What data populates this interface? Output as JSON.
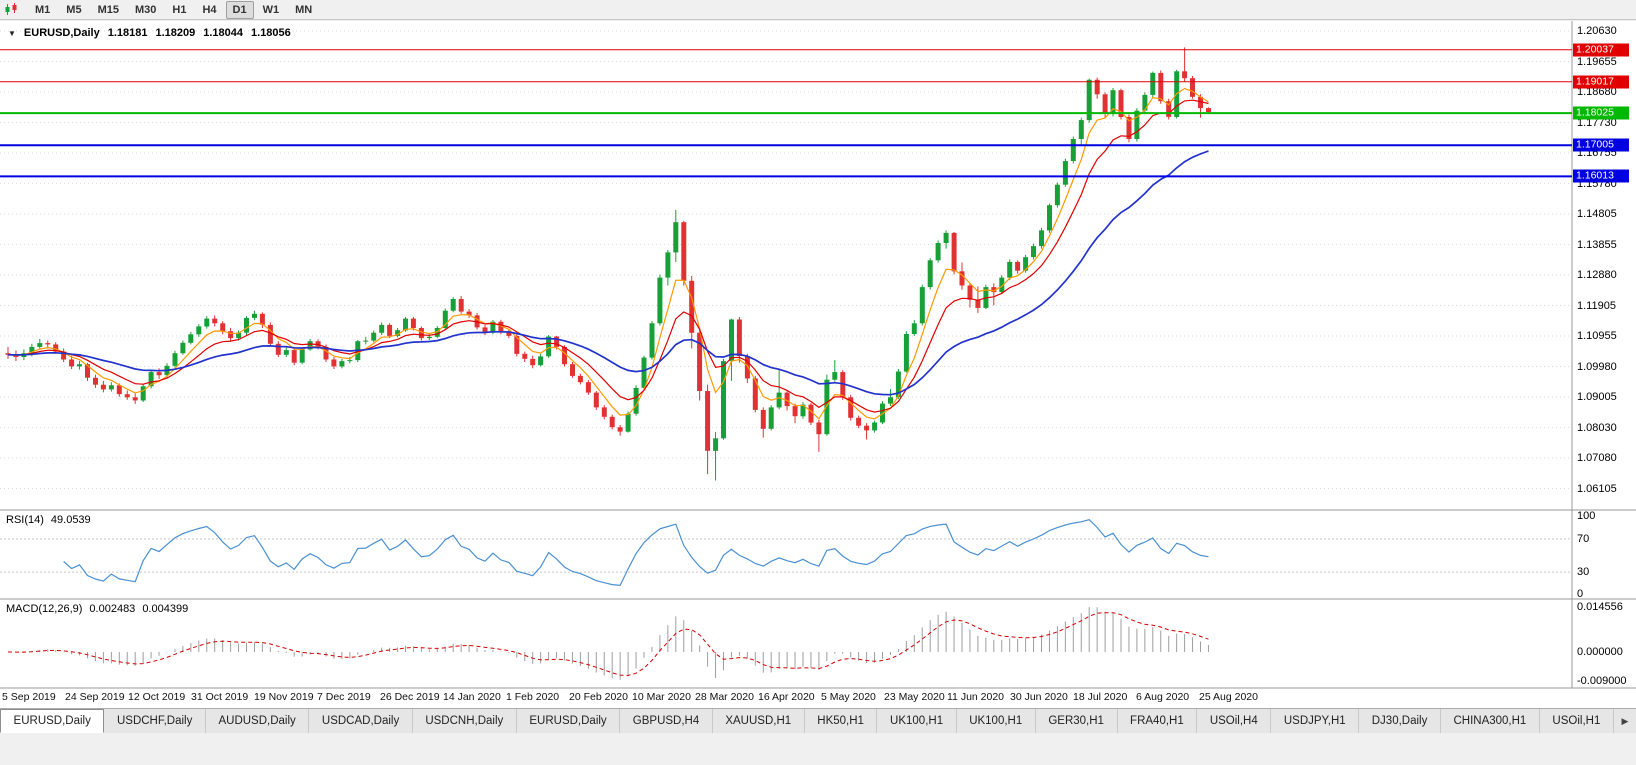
{
  "toolbar": {
    "timeframes": [
      "M1",
      "M5",
      "M15",
      "M30",
      "H1",
      "H4",
      "D1",
      "W1",
      "MN"
    ],
    "active": "D1",
    "chart_icon": "candlestick-chart-icon"
  },
  "header": {
    "collapse_icon": "▼",
    "symbol_period": "EURUSD,Daily",
    "open": "1.18181",
    "high": "1.18209",
    "low": "1.18044",
    "close": "1.18056"
  },
  "tabs": {
    "active_index": 0,
    "scroll_right": "▶",
    "items": [
      "EURUSD,Daily",
      "USDCHF,Daily",
      "AUDUSD,Daily",
      "USDCAD,Daily",
      "USDCNH,Daily",
      "EURUSD,Daily",
      "GBPUSD,H4",
      "XAUUSD,H1",
      "HK50,H1",
      "UK100,H1",
      "UK100,H1",
      "GER30,H1",
      "FRA40,H1",
      "USOil,H4",
      "USDJPY,H1",
      "DJ30,Daily",
      "CHINA300,H1",
      "USOil,H1"
    ]
  },
  "chart_data": {
    "type": "candlestick",
    "symbol": "EURUSD",
    "timeframe": "Daily",
    "colors": {
      "up": "#18a038",
      "down": "#e03232"
    },
    "y_ticks": [
      "1.20630",
      "1.19655",
      "1.18680",
      "1.17730",
      "1.16755",
      "1.15780",
      "1.14805",
      "1.13855",
      "1.12880",
      "1.11905",
      "1.10955",
      "1.09980",
      "1.09005",
      "1.08030",
      "1.07080",
      "1.06105"
    ],
    "x_labels": [
      "5 Sep 2019",
      "24 Sep 2019",
      "12 Oct 2019",
      "31 Oct 2019",
      "19 Nov 2019",
      "7 Dec 2019",
      "26 Dec 2019",
      "14 Jan 2020",
      "1 Feb 2020",
      "20 Feb 2020",
      "10 Mar 2020",
      "28 Mar 2020",
      "16 Apr 2020",
      "5 May 2020",
      "23 May 2020",
      "11 Jun 2020",
      "30 Jun 2020",
      "18 Jul 2020",
      "6 Aug 2020",
      "25 Aug 2020"
    ],
    "levels": [
      {
        "value": "1.20037",
        "color": "#e00000",
        "thickness": 1
      },
      {
        "value": "1.19017",
        "color": "#e00000",
        "thickness": 1
      },
      {
        "value": "1.18025",
        "color": "#00b800",
        "thickness": 2
      },
      {
        "value": "1.17005",
        "color": "#0000e0",
        "thickness": 2
      },
      {
        "value": "1.16013",
        "color": "#0000e0",
        "thickness": 2
      }
    ],
    "moving_averages": [
      {
        "name": "ma-fast",
        "color": "#ff9900"
      },
      {
        "name": "ma-mid",
        "color": "#e00000"
      },
      {
        "name": "ma-slow",
        "color": "#2233cc"
      }
    ],
    "indicators": [
      {
        "type": "rsi",
        "label": "RSI(14)",
        "value": "49.0539",
        "ticks": [
          "100",
          "70",
          "30",
          "0"
        ],
        "levels": [
          70,
          30
        ],
        "line_color": "#4a90d2"
      },
      {
        "type": "macd",
        "label": "MACD(12,26,9)",
        "values": [
          "0.002483",
          "0.004399"
        ],
        "ticks": [
          "0.014556",
          "0.000000",
          "-0.009000"
        ],
        "histogram_color": "#9e9e9e",
        "signal_color": "#d40000"
      }
    ],
    "candles": [
      [
        1.104,
        1.106,
        1.1022,
        1.1035
      ],
      [
        1.1035,
        1.1049,
        1.1015,
        1.1028
      ],
      [
        1.1028,
        1.1052,
        1.1018,
        1.104
      ],
      [
        1.104,
        1.107,
        1.103,
        1.106
      ],
      [
        1.106,
        1.1085,
        1.1052,
        1.1072
      ],
      [
        1.1072,
        1.108,
        1.1055,
        1.1068
      ],
      [
        1.1068,
        1.1075,
        1.1038,
        1.1045
      ],
      [
        1.1045,
        1.1055,
        1.1012,
        1.102
      ],
      [
        1.102,
        1.1032,
        1.099,
        1.0998
      ],
      [
        1.0998,
        1.1016,
        1.0988,
        1.1005
      ],
      [
        1.1005,
        1.101,
        1.0952,
        1.0962
      ],
      [
        1.0962,
        1.0972,
        1.093,
        1.094
      ],
      [
        1.094,
        1.0952,
        1.0916,
        1.0925
      ],
      [
        1.0925,
        1.0948,
        1.0918,
        1.0938
      ],
      [
        1.0938,
        1.0944,
        1.0902,
        1.091
      ],
      [
        1.091,
        1.0922,
        1.0892,
        1.09
      ],
      [
        1.09,
        1.0912,
        1.0879,
        1.089
      ],
      [
        1.089,
        1.0942,
        1.0885,
        1.0935
      ],
      [
        1.0935,
        1.0988,
        1.0928,
        1.098
      ],
      [
        1.098,
        1.0992,
        1.0958,
        1.097
      ],
      [
        1.097,
        1.1008,
        1.0962,
        1.1
      ],
      [
        1.1,
        1.1048,
        1.0995,
        1.104
      ],
      [
        1.104,
        1.108,
        1.1035,
        1.1073
      ],
      [
        1.1073,
        1.1108,
        1.1068,
        1.11
      ],
      [
        1.11,
        1.1132,
        1.1092,
        1.1125
      ],
      [
        1.1125,
        1.1158,
        1.1118,
        1.115
      ],
      [
        1.115,
        1.116,
        1.1125,
        1.1135
      ],
      [
        1.1135,
        1.1142,
        1.11,
        1.111
      ],
      [
        1.111,
        1.112,
        1.1078,
        1.1088
      ],
      [
        1.1088,
        1.1112,
        1.108,
        1.1105
      ],
      [
        1.1105,
        1.1158,
        1.1098,
        1.1152
      ],
      [
        1.1152,
        1.1175,
        1.1145,
        1.1165
      ],
      [
        1.1165,
        1.117,
        1.112,
        1.113
      ],
      [
        1.113,
        1.1138,
        1.1062,
        1.107
      ],
      [
        1.107,
        1.1078,
        1.1028,
        1.1035
      ],
      [
        1.1035,
        1.1058,
        1.1028,
        1.105
      ],
      [
        1.105,
        1.1055,
        1.1002,
        1.101
      ],
      [
        1.101,
        1.1058,
        1.1005,
        1.1052
      ],
      [
        1.1052,
        1.1085,
        1.1048,
        1.1078
      ],
      [
        1.1078,
        1.1084,
        1.1052,
        1.106
      ],
      [
        1.106,
        1.1068,
        1.1012,
        1.102
      ],
      [
        1.102,
        1.1028,
        1.099,
        1.0998
      ],
      [
        1.0998,
        1.1022,
        1.0992,
        1.1015
      ],
      [
        1.1015,
        1.1028,
        1.1008,
        1.1018
      ],
      [
        1.1018,
        1.1082,
        1.1012,
        1.1078
      ],
      [
        1.1078,
        1.1092,
        1.1068,
        1.108
      ],
      [
        1.108,
        1.1112,
        1.1075,
        1.1105
      ],
      [
        1.1105,
        1.1138,
        1.1098,
        1.113
      ],
      [
        1.113,
        1.1135,
        1.1088,
        1.1095
      ],
      [
        1.1095,
        1.112,
        1.109,
        1.1113
      ],
      [
        1.1113,
        1.1155,
        1.1108,
        1.115
      ],
      [
        1.115,
        1.1155,
        1.1112,
        1.112
      ],
      [
        1.112,
        1.1125,
        1.108,
        1.1088
      ],
      [
        1.1088,
        1.11,
        1.1082,
        1.1092
      ],
      [
        1.1092,
        1.1126,
        1.1088,
        1.112
      ],
      [
        1.112,
        1.1182,
        1.1115,
        1.1175
      ],
      [
        1.1175,
        1.1218,
        1.117,
        1.1212
      ],
      [
        1.1212,
        1.1222,
        1.1165,
        1.1172
      ],
      [
        1.1172,
        1.118,
        1.1152,
        1.116
      ],
      [
        1.116,
        1.1168,
        1.1115,
        1.1122
      ],
      [
        1.1122,
        1.113,
        1.1098,
        1.1105
      ],
      [
        1.1105,
        1.1145,
        1.11,
        1.114
      ],
      [
        1.114,
        1.1146,
        1.11,
        1.1108
      ],
      [
        1.1108,
        1.1118,
        1.1088,
        1.1095
      ],
      [
        1.1095,
        1.11,
        1.103,
        1.1038
      ],
      [
        1.1038,
        1.1045,
        1.1012,
        1.1022
      ],
      [
        1.1022,
        1.1032,
        1.0992,
        1.1002
      ],
      [
        1.1002,
        1.1038,
        1.0998,
        1.103
      ],
      [
        1.103,
        1.1098,
        1.1025,
        1.1093
      ],
      [
        1.1093,
        1.1095,
        1.1052,
        1.106
      ],
      [
        1.106,
        1.1065,
        1.0998,
        1.1005
      ],
      [
        1.1005,
        1.1012,
        1.0962,
        1.0968
      ],
      [
        1.0968,
        1.0975,
        1.0941,
        1.0948
      ],
      [
        1.0948,
        1.0955,
        1.0908,
        1.0915
      ],
      [
        1.0915,
        1.092,
        1.086,
        1.0868
      ],
      [
        1.0868,
        1.0875,
        1.083,
        1.0838
      ],
      [
        1.0838,
        1.0845,
        1.0798,
        1.0805
      ],
      [
        1.0805,
        1.0812,
        1.0778,
        1.0791
      ],
      [
        1.0791,
        1.0855,
        1.0788,
        1.0848
      ],
      [
        1.0848,
        1.0938,
        1.0842,
        1.093
      ],
      [
        1.093,
        1.1032,
        1.0925,
        1.1026
      ],
      [
        1.1026,
        1.1142,
        1.102,
        1.1135
      ],
      [
        1.1135,
        1.129,
        1.1128,
        1.128
      ],
      [
        1.128,
        1.1368,
        1.1255,
        1.136
      ],
      [
        1.136,
        1.1495,
        1.133,
        1.1456
      ],
      [
        1.1456,
        1.146,
        1.1255,
        1.127
      ],
      [
        1.127,
        1.1285,
        1.1055,
        1.1105
      ],
      [
        1.1105,
        1.112,
        1.089,
        1.092
      ],
      [
        1.092,
        1.094,
        1.0656,
        1.073
      ],
      [
        1.073,
        1.079,
        1.0636,
        1.077
      ],
      [
        1.077,
        1.1022,
        1.0765,
        1.1015
      ],
      [
        1.1015,
        1.115,
        1.0952,
        1.1147
      ],
      [
        1.1147,
        1.1155,
        1.101,
        1.1031
      ],
      [
        1.1031,
        1.1038,
        1.0945,
        1.096
      ],
      [
        1.096,
        1.0968,
        1.0852,
        1.086
      ],
      [
        1.086,
        1.0868,
        1.0772,
        1.08
      ],
      [
        1.08,
        1.0875,
        1.0795,
        1.0868
      ],
      [
        1.0868,
        1.099,
        1.0862,
        1.0915
      ],
      [
        1.0915,
        1.0922,
        1.0858,
        1.0872
      ],
      [
        1.0872,
        1.088,
        1.0818,
        1.084
      ],
      [
        1.084,
        1.0885,
        1.0832,
        1.0877
      ],
      [
        1.0877,
        1.0882,
        1.0812,
        1.082
      ],
      [
        1.082,
        1.0828,
        1.0727,
        1.0783
      ],
      [
        1.0783,
        1.0972,
        1.0778,
        1.0956
      ],
      [
        1.0956,
        1.1018,
        1.095,
        1.098
      ],
      [
        1.098,
        1.0986,
        1.0892,
        1.09
      ],
      [
        1.09,
        1.0908,
        1.0826,
        1.0835
      ],
      [
        1.0835,
        1.0842,
        1.0802,
        1.081
      ],
      [
        1.081,
        1.0818,
        1.0766,
        1.0795
      ],
      [
        1.0795,
        1.0826,
        1.0788,
        1.082
      ],
      [
        1.082,
        1.0888,
        1.0815,
        1.088
      ],
      [
        1.088,
        1.0926,
        1.0872,
        1.09
      ],
      [
        1.09,
        1.099,
        1.0895,
        1.0982
      ],
      [
        1.0982,
        1.111,
        1.0978,
        1.1101
      ],
      [
        1.1101,
        1.1145,
        1.1095,
        1.1135
      ],
      [
        1.1135,
        1.1258,
        1.1128,
        1.125
      ],
      [
        1.125,
        1.1342,
        1.1242,
        1.1335
      ],
      [
        1.1335,
        1.1398,
        1.1328,
        1.139
      ],
      [
        1.139,
        1.143,
        1.1372,
        1.1422
      ],
      [
        1.1422,
        1.1425,
        1.129,
        1.13
      ],
      [
        1.13,
        1.1328,
        1.1242,
        1.1255
      ],
      [
        1.1255,
        1.1262,
        1.1185,
        1.121
      ],
      [
        1.121,
        1.1252,
        1.1168,
        1.1184
      ],
      [
        1.1184,
        1.1258,
        1.118,
        1.125
      ],
      [
        1.125,
        1.1262,
        1.1192,
        1.1234
      ],
      [
        1.1234,
        1.1288,
        1.1228,
        1.128
      ],
      [
        1.128,
        1.1338,
        1.1272,
        1.133
      ],
      [
        1.133,
        1.1335,
        1.1292,
        1.1302
      ],
      [
        1.1302,
        1.1352,
        1.1296,
        1.1345
      ],
      [
        1.1345,
        1.1388,
        1.1338,
        1.138
      ],
      [
        1.138,
        1.1438,
        1.1372,
        1.143
      ],
      [
        1.143,
        1.1515,
        1.1422,
        1.151
      ],
      [
        1.151,
        1.1582,
        1.1502,
        1.1575
      ],
      [
        1.1575,
        1.1658,
        1.1568,
        1.165
      ],
      [
        1.165,
        1.1728,
        1.1642,
        1.172
      ],
      [
        1.172,
        1.1788,
        1.1698,
        1.178
      ],
      [
        1.178,
        1.1912,
        1.1772,
        1.1908
      ],
      [
        1.1908,
        1.1915,
        1.1848,
        1.1862
      ],
      [
        1.1862,
        1.1868,
        1.1788,
        1.18
      ],
      [
        1.18,
        1.1882,
        1.1792,
        1.1875
      ],
      [
        1.1875,
        1.188,
        1.1782,
        1.179
      ],
      [
        1.179,
        1.1798,
        1.171,
        1.172
      ],
      [
        1.172,
        1.1818,
        1.1712,
        1.181
      ],
      [
        1.181,
        1.1868,
        1.1802,
        1.186
      ],
      [
        1.186,
        1.1934,
        1.1852,
        1.193
      ],
      [
        1.193,
        1.1938,
        1.1832,
        1.184
      ],
      [
        1.184,
        1.1848,
        1.1782,
        1.179
      ],
      [
        1.179,
        1.194,
        1.1785,
        1.1935
      ],
      [
        1.1935,
        1.2011,
        1.1902,
        1.1913
      ],
      [
        1.1913,
        1.192,
        1.1848,
        1.1854
      ],
      [
        1.1854,
        1.1862,
        1.1788,
        1.1818
      ],
      [
        1.18181,
        1.18209,
        1.18044,
        1.18056
      ]
    ]
  }
}
